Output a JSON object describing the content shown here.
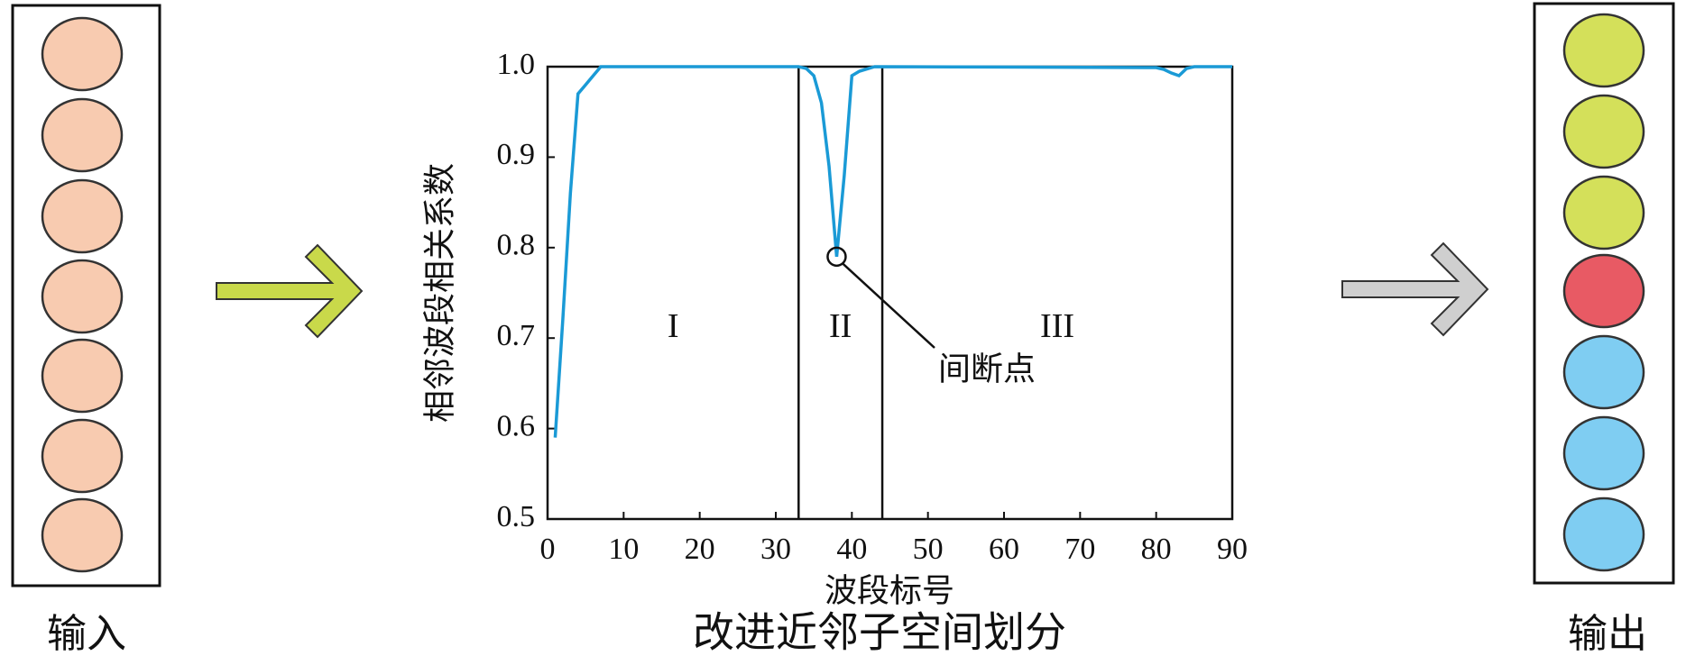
{
  "input": {
    "label": "输入"
  },
  "output": {
    "label": "输出"
  },
  "caption": "改进近邻子空间划分",
  "chart_data": {
    "type": "line",
    "x_label": "波段标号",
    "y_label": "相邻波段相关系数",
    "x": [
      1,
      2,
      3,
      4,
      5,
      6,
      7,
      8,
      33,
      34,
      35,
      36,
      37,
      38,
      39,
      40,
      41,
      43,
      80,
      81,
      82,
      83,
      84,
      85,
      90
    ],
    "series": [
      {
        "color": "#1a9ad6",
        "values": [
          0.59,
          0.72,
          0.86,
          0.97,
          0.98,
          0.99,
          1.0,
          1.0,
          1.0,
          0.998,
          0.99,
          0.96,
          0.89,
          0.79,
          0.88,
          0.99,
          0.995,
          1.0,
          0.999,
          0.997,
          0.993,
          0.99,
          0.998,
          1.0,
          1.0
        ]
      }
    ],
    "xlim": [
      0,
      90
    ],
    "ylim": [
      0.5,
      1
    ],
    "xticks": [
      0,
      10,
      20,
      30,
      40,
      50,
      60,
      70,
      80,
      90
    ],
    "yticks": [
      0.5,
      0.6,
      0.7,
      0.8,
      0.9,
      {
        "value": 1,
        "label": "1.0"
      }
    ],
    "dividers": [
      33,
      44
    ],
    "regions": [
      {
        "label": "I"
      },
      {
        "label": "II"
      },
      {
        "label": "III"
      }
    ],
    "annotation": {
      "text": "间断点",
      "x": 38,
      "y": 0.79
    }
  }
}
